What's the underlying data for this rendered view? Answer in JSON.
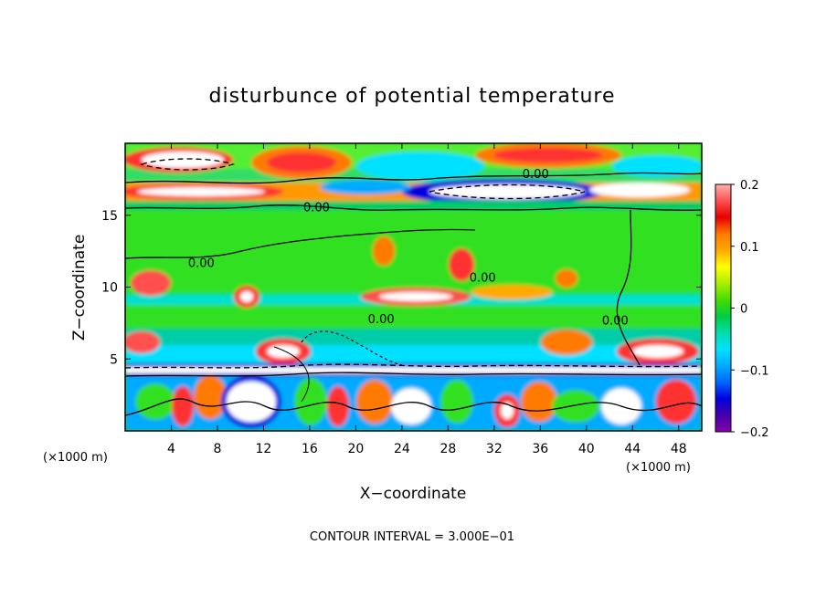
{
  "chart_data": {
    "type": "heatmap",
    "title": "disturbunce of potential temperature",
    "xlabel": "X−coordinate",
    "ylabel": "Z−coordinate",
    "x_unit": "(×1000 m)",
    "x_unit_right": "(×1000 m)",
    "xlim": [
      0,
      50
    ],
    "ylim": [
      0,
      20
    ],
    "x_ticks": [
      4,
      8,
      12,
      16,
      20,
      24,
      28,
      32,
      36,
      40,
      44,
      48
    ],
    "y_ticks": [
      5,
      10,
      15
    ],
    "colorbar": {
      "range": [
        -0.2,
        0.2
      ],
      "ticks": [
        0.2,
        0.1,
        0,
        -0.1,
        -0.2
      ],
      "tick_labels": [
        "0.2",
        "0.1",
        "0",
        "−0.1",
        "−0.2"
      ],
      "colors": [
        "#ffb0b0",
        "#ff5050",
        "#e60000",
        "#ff7a00",
        "#ffaa00",
        "#ffff00",
        "#aaee00",
        "#44dd00",
        "#00cc44",
        "#00ddaa",
        "#00e0ff",
        "#00aaff",
        "#0066ff",
        "#0000dd",
        "#4400aa",
        "#8800aa"
      ]
    },
    "contour_labels": [
      {
        "text": "0.00",
        "x": 16.6,
        "y": 15.6
      },
      {
        "text": "0.00",
        "x": 6.6,
        "y": 11.7
      },
      {
        "text": "0.00",
        "x": 31.0,
        "y": 10.7
      },
      {
        "text": "0.00",
        "x": 22.2,
        "y": 7.8
      },
      {
        "text": "0.00",
        "x": 42.5,
        "y": 7.7
      },
      {
        "text": "0.00",
        "x": 35.6,
        "y": 17.9
      }
    ],
    "footnote": "CONTOUR INTERVAL = 3.000E−01"
  }
}
